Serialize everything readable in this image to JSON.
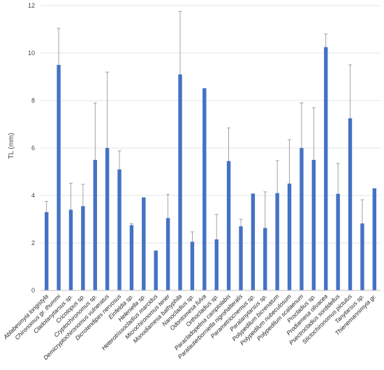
{
  "chart_data": {
    "type": "bar",
    "title": "",
    "xlabel": "",
    "ylabel": "TL (mm)",
    "ylim": [
      0,
      12
    ],
    "yticks": [
      0,
      2,
      4,
      6,
      8,
      10,
      12
    ],
    "grid": true,
    "legend": "none",
    "color": "#4472c4",
    "categories": [
      "Ablabesmyia longistyla",
      "Chironomus gr. thummi",
      "Cladotanytarsus sp.",
      "Cricotopus sp.",
      "Cryptochironomus sp.",
      "Demicryptochironomus vulneratus",
      "Dicrotendipes nervosus",
      "Einfeldia sp.",
      "Heleniella sp.",
      "Heterotrissocladius marcidus",
      "Microchironomus tener",
      "Monodiamesa bathyphila",
      "Nanocladius sp.",
      "Odontomesa fulva",
      "Orthocladius sp.",
      "Paracladopelma camptolabis",
      "Paralauterborniella nigrohalteralis",
      "Parametriocnemus sp.",
      "Paratanytarsus sp.",
      "Polypedilum bicrenatum",
      "Polypedilum nubeculosum",
      "Polypedilum scalaenum",
      "Procladius sp.",
      "Prodiamesa olivacea",
      "Psectrocladius sordidellus",
      "Stictochironomus pictulus",
      "Tanytarsus sp.",
      "Thienemannimyia gr."
    ],
    "values": [
      3.3,
      9.5,
      3.4,
      3.55,
      5.5,
      6.0,
      5.1,
      2.75,
      3.92,
      1.68,
      3.05,
      9.1,
      2.05,
      8.52,
      2.15,
      5.45,
      2.7,
      4.08,
      2.63,
      4.1,
      4.5,
      6.0,
      5.5,
      10.25,
      4.07,
      7.25,
      2.82,
      4.3
    ],
    "errors": [
      0.45,
      1.55,
      1.12,
      0.92,
      2.4,
      3.2,
      0.78,
      0.06,
      0.0,
      0.0,
      1.0,
      2.65,
      0.42,
      0.0,
      1.05,
      1.4,
      0.3,
      0.0,
      1.52,
      1.37,
      1.85,
      1.9,
      2.2,
      0.55,
      1.28,
      2.25,
      1.0,
      0.0
    ]
  }
}
